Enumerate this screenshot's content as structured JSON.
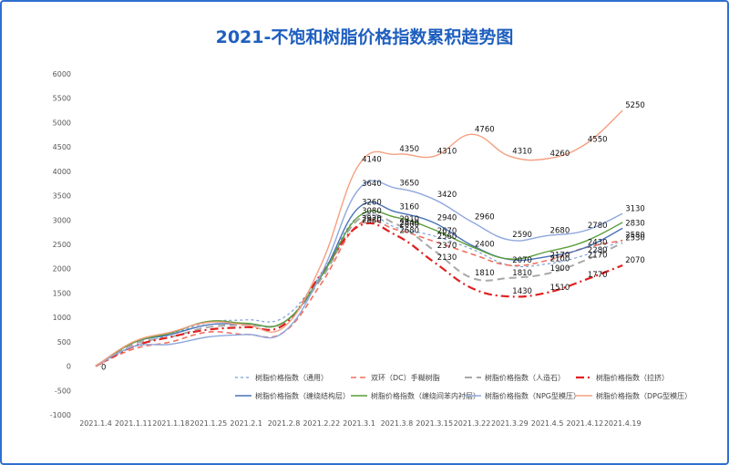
{
  "chart_data": {
    "type": "line",
    "title": "2021-不饱和树脂价格指数累积趋势图",
    "xlabel": "",
    "ylabel": "",
    "ylim": [
      -1000,
      6000
    ],
    "ytick_step": 500,
    "grid": false,
    "legend_position": "bottom",
    "categories": [
      "2021.1.4",
      "2021.1.11",
      "2021.1.18",
      "2021.1.25",
      "2021.2.1",
      "2021.2.8",
      "2021.2.22",
      "2021.3.1",
      "2021.3.8",
      "2021.3.15",
      "2021.3.22",
      "2021.3.29",
      "2021.4.5",
      "2021.4.12",
      "2021.4.19"
    ],
    "series": [
      {
        "name": "树脂价格指数（通用）",
        "color": "#7b9fd6",
        "dash": "3,3",
        "width": 1.2,
        "values": [
          0,
          400,
          650,
          900,
          950,
          1000,
          1900,
          3080,
          2840,
          2670,
          2400,
          2070,
          2100,
          2280,
          2580
        ],
        "labels": [
          null,
          null,
          null,
          null,
          null,
          null,
          null,
          3080,
          2840,
          2670,
          2400,
          2070,
          2100,
          2280,
          2580
        ]
      },
      {
        "name": "双环（DC）手糊树脂",
        "color": "#f07060",
        "dash": "6,4",
        "width": 1.6,
        "values": [
          0,
          350,
          500,
          700,
          650,
          700,
          1700,
          2920,
          2800,
          2560,
          2300,
          2070,
          2170,
          2430,
          2580
        ],
        "labels": [
          null,
          null,
          null,
          null,
          null,
          null,
          null,
          2920,
          2800,
          2560,
          null,
          null,
          2170,
          2430,
          null
        ]
      },
      {
        "name": "树脂价格指数（人造石）",
        "color": "#a8a8a8",
        "dash": "8,5",
        "width": 2,
        "values": [
          0,
          450,
          600,
          800,
          850,
          900,
          1800,
          3020,
          2910,
          2370,
          1810,
          1810,
          1900,
          2170,
          2530
        ],
        "labels": [
          null,
          null,
          null,
          null,
          null,
          null,
          null,
          null,
          2910,
          2370,
          1810,
          1810,
          1900,
          2170,
          2530
        ]
      },
      {
        "name": "树脂价格指数（拉挤）",
        "color": "#e02020",
        "dash": "9,4,2,4",
        "width": 2.2,
        "values": [
          0,
          400,
          600,
          750,
          800,
          850,
          1900,
          2880,
          2680,
          2130,
          1600,
          1430,
          1510,
          1770,
          2070
        ],
        "labels": [
          null,
          null,
          null,
          null,
          null,
          null,
          null,
          2880,
          2680,
          2130,
          null,
          1430,
          1510,
          1770,
          2070
        ]
      },
      {
        "name": "树脂价格指数（缠绕结构层）",
        "color": "#4a72b8",
        "dash": "",
        "width": 1.4,
        "values": [
          0,
          480,
          650,
          850,
          870,
          900,
          1850,
          3260,
          3160,
          2940,
          2480,
          2190,
          2250,
          2430,
          2830
        ],
        "labels": [
          null,
          null,
          null,
          null,
          null,
          null,
          null,
          3260,
          3160,
          2940,
          null,
          null,
          null,
          null,
          2830
        ]
      },
      {
        "name": "树脂价格指数（缠绕间苯内衬层）",
        "color": "#5c9e3a",
        "dash": "",
        "width": 1.4,
        "values": [
          0,
          480,
          680,
          920,
          880,
          900,
          1850,
          3080,
          3050,
          2800,
          2450,
          2200,
          2350,
          2560,
          2950
        ],
        "labels": [
          null,
          null,
          null,
          null,
          null,
          null,
          null,
          null,
          null,
          null,
          null,
          null,
          null,
          null,
          null
        ]
      },
      {
        "name": "树脂价格指数（NPG型模压）",
        "color": "#8fa8dc",
        "dash": "",
        "width": 1.4,
        "values": [
          0,
          400,
          450,
          600,
          650,
          700,
          1900,
          3640,
          3650,
          3420,
          2960,
          2590,
          2680,
          2780,
          3130
        ],
        "labels": [
          null,
          null,
          null,
          null,
          null,
          null,
          null,
          3640,
          3650,
          3420,
          2960,
          2590,
          2680,
          2780,
          3130
        ]
      },
      {
        "name": "树脂价格指数（DPG型模压）",
        "color": "#f4a080",
        "dash": "",
        "width": 1.4,
        "values": [
          0,
          500,
          700,
          900,
          850,
          800,
          2100,
          4140,
          4350,
          4310,
          4760,
          4310,
          4260,
          4550,
          5250
        ],
        "labels": [
          null,
          null,
          null,
          null,
          null,
          null,
          null,
          4140,
          4350,
          4310,
          4760,
          4310,
          4260,
          4550,
          5250
        ]
      }
    ],
    "annotations": [
      "0"
    ]
  }
}
